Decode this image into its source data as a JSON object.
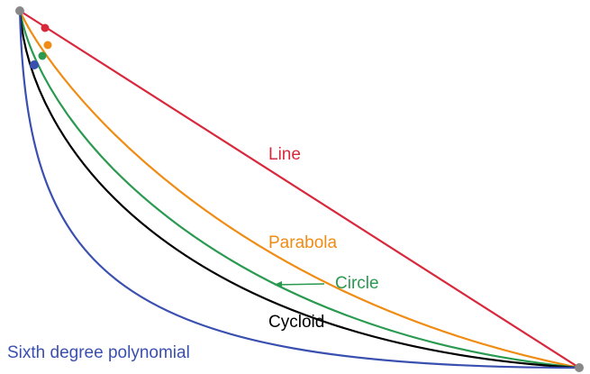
{
  "labels": {
    "line": "Line",
    "parabola": "Parabola",
    "circle": "Circle",
    "cycloid": "Cycloid",
    "polynomial": "Sixth degree polynomial"
  }
}
